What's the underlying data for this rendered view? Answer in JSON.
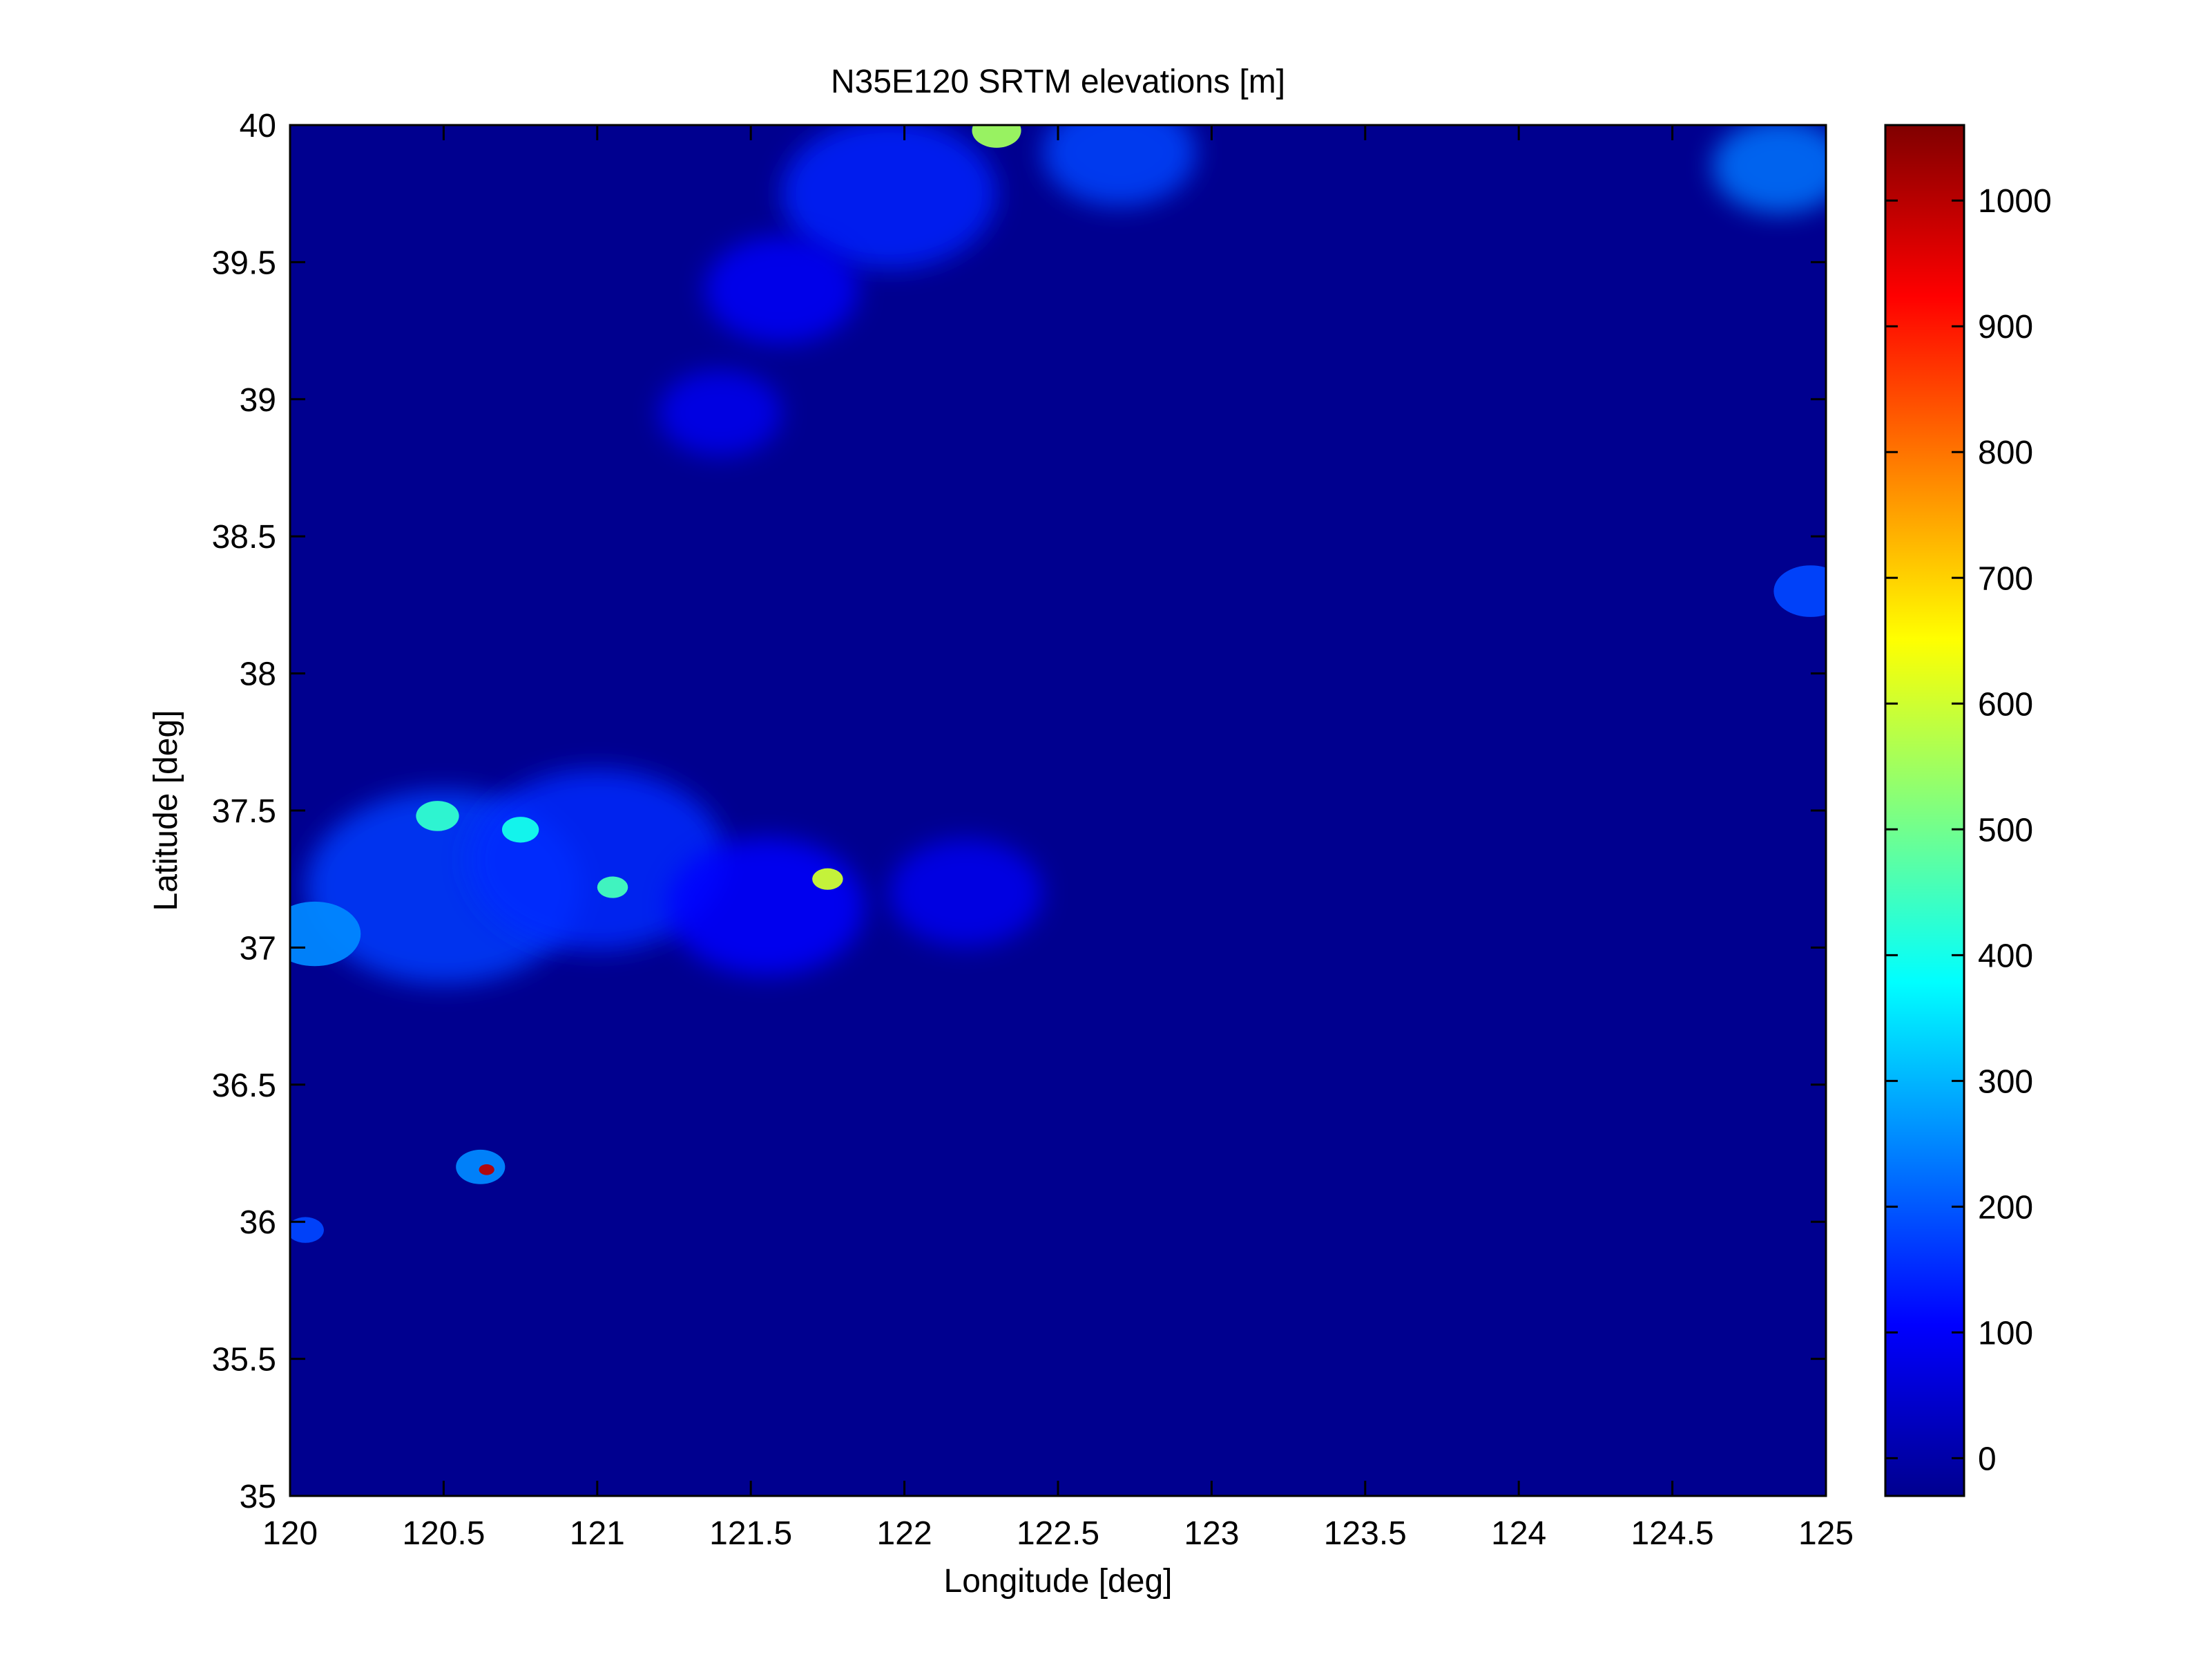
{
  "chart_data": {
    "type": "heatmap",
    "title": "N35E120 SRTM elevations [m]",
    "xlabel": "Longitude [deg]",
    "ylabel": "Latitude [deg]",
    "xlim": [
      120,
      125
    ],
    "ylim": [
      35,
      40
    ],
    "x_ticks": [
      120,
      120.5,
      121,
      121.5,
      122,
      122.5,
      123,
      123.5,
      124,
      124.5,
      125
    ],
    "y_ticks": [
      35,
      35.5,
      36,
      36.5,
      37,
      37.5,
      38,
      38.5,
      39,
      39.5,
      40
    ],
    "colormap": "jet",
    "clim": [
      -30,
      1060
    ],
    "colorbar_ticks": [
      0,
      100,
      200,
      300,
      400,
      500,
      600,
      700,
      800,
      900,
      1000
    ],
    "background_value": 0,
    "features": [
      {
        "lon": 120.5,
        "lat": 37.22,
        "radius": 0.45,
        "elevation": 170
      },
      {
        "lon": 121.0,
        "lat": 37.32,
        "radius": 0.42,
        "elevation": 150
      },
      {
        "lon": 121.55,
        "lat": 37.15,
        "radius": 0.32,
        "elevation": 110
      },
      {
        "lon": 122.2,
        "lat": 37.2,
        "radius": 0.25,
        "elevation": 90
      },
      {
        "lon": 120.08,
        "lat": 37.05,
        "radius": 0.15,
        "elevation": 250
      },
      {
        "lon": 120.48,
        "lat": 37.48,
        "radius": 0.07,
        "elevation": 430
      },
      {
        "lon": 120.75,
        "lat": 37.43,
        "radius": 0.06,
        "elevation": 400
      },
      {
        "lon": 121.05,
        "lat": 37.22,
        "radius": 0.05,
        "elevation": 450
      },
      {
        "lon": 121.75,
        "lat": 37.25,
        "radius": 0.05,
        "elevation": 600
      },
      {
        "lon": 120.62,
        "lat": 36.2,
        "radius": 0.08,
        "elevation": 250
      },
      {
        "lon": 120.64,
        "lat": 36.19,
        "radius": 0.025,
        "elevation": 1000
      },
      {
        "lon": 120.05,
        "lat": 35.97,
        "radius": 0.06,
        "elevation": 180
      },
      {
        "lon": 121.95,
        "lat": 39.75,
        "radius": 0.35,
        "elevation": 140
      },
      {
        "lon": 122.3,
        "lat": 39.98,
        "radius": 0.08,
        "elevation": 550
      },
      {
        "lon": 122.7,
        "lat": 39.9,
        "radius": 0.25,
        "elevation": 180
      },
      {
        "lon": 121.6,
        "lat": 39.4,
        "radius": 0.25,
        "elevation": 100
      },
      {
        "lon": 121.4,
        "lat": 38.95,
        "radius": 0.2,
        "elevation": 90
      },
      {
        "lon": 124.85,
        "lat": 39.85,
        "radius": 0.22,
        "elevation": 230
      },
      {
        "lon": 124.95,
        "lat": 38.3,
        "radius": 0.12,
        "elevation": 180
      }
    ]
  }
}
